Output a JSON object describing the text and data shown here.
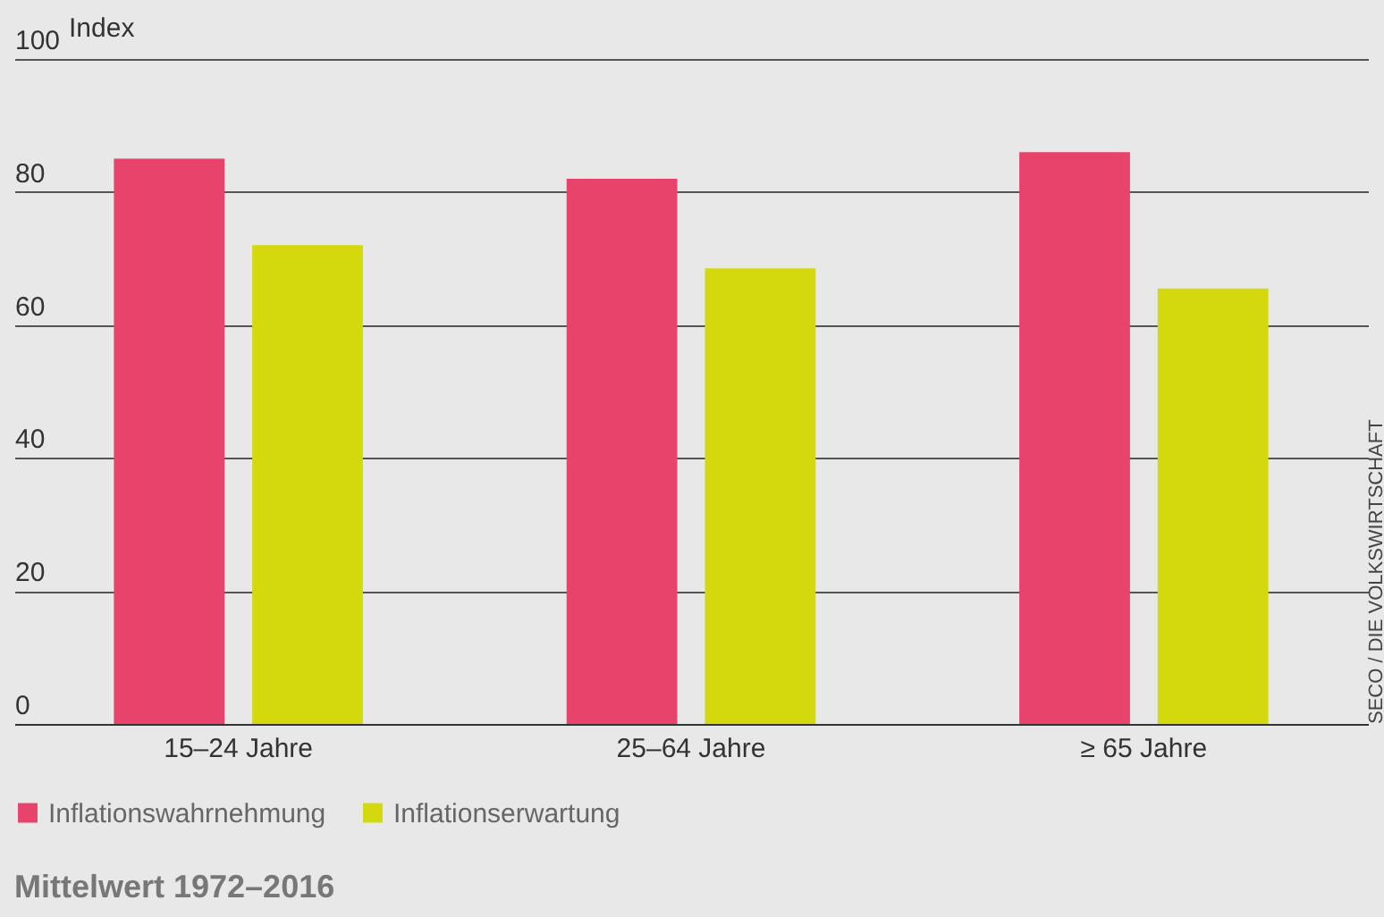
{
  "chart_data": {
    "type": "bar",
    "ylabel": "Index",
    "categories": [
      "15–24 Jahre",
      "25–64 Jahre",
      "≥ 65 Jahre"
    ],
    "series": [
      {
        "name": "Inflationswahrnehmung",
        "color": "#e8436a",
        "values": [
          85,
          82,
          86
        ]
      },
      {
        "name": "Inflationserwartung",
        "color": "#d4d90e",
        "values": [
          72,
          68.5,
          65.5
        ]
      }
    ],
    "ylim": [
      0,
      100
    ],
    "yticks": [
      0,
      20,
      40,
      60,
      80,
      100
    ],
    "grid": "y",
    "legend": "bottom left",
    "annotations": [
      "SECO / DIE VOLKSWIRTSCHAFT",
      "Mittelwert 1972–2016"
    ]
  }
}
